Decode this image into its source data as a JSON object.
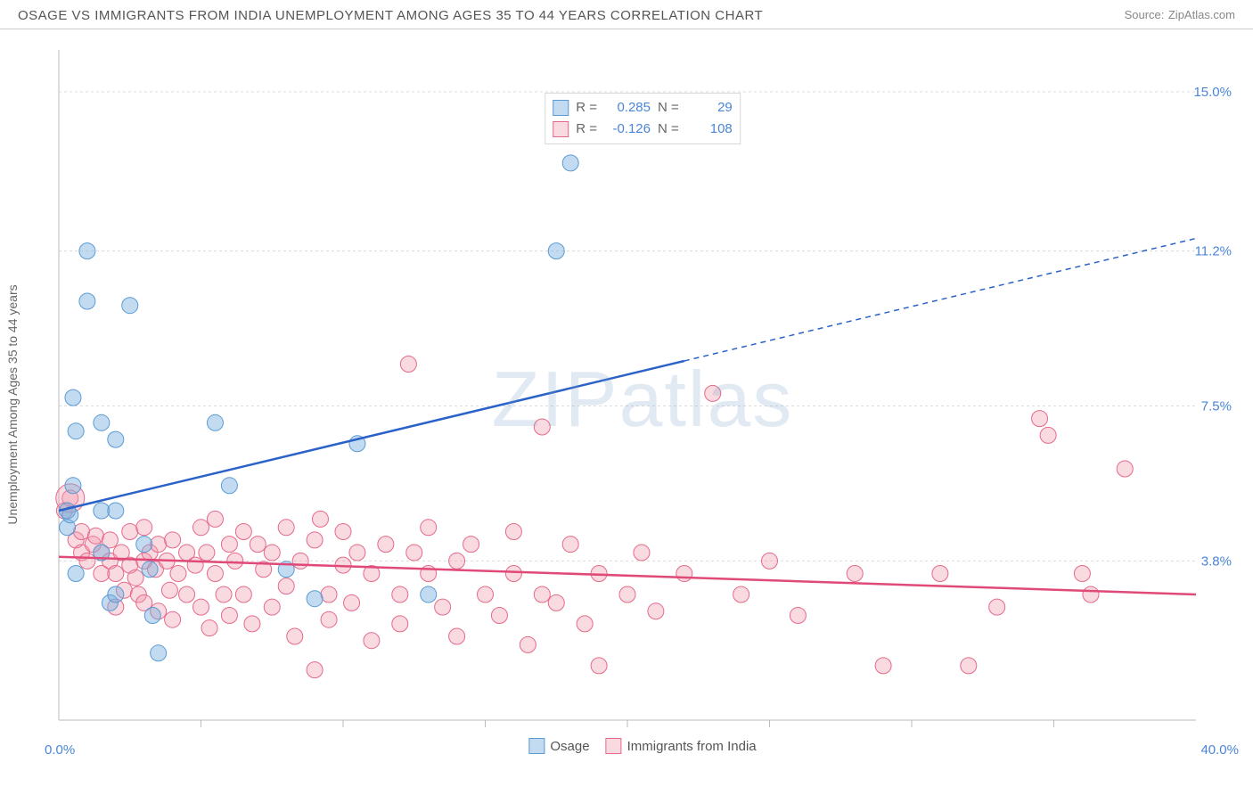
{
  "title": "OSAGE VS IMMIGRANTS FROM INDIA UNEMPLOYMENT AMONG AGES 35 TO 44 YEARS CORRELATION CHART",
  "source_label": "Source:",
  "source_name": "ZipAtlas.com",
  "y_axis_label": "Unemployment Among Ages 35 to 44 years",
  "watermark": {
    "a": "ZIP",
    "b": "atlas"
  },
  "stats": {
    "blue": {
      "R_label": "R =",
      "R": "0.285",
      "N_label": "N =",
      "N": "29"
    },
    "pink": {
      "R_label": "R =",
      "R": "-0.126",
      "N_label": "N =",
      "N": "108"
    }
  },
  "legend": {
    "blue": "Osage",
    "pink": "Immigrants from India"
  },
  "axes": {
    "x_min_label": "0.0%",
    "x_max_label": "40.0%",
    "y_ticks": [
      {
        "value": 3.8,
        "label": "3.8%"
      },
      {
        "value": 7.5,
        "label": "7.5%"
      },
      {
        "value": 11.2,
        "label": "11.2%"
      },
      {
        "value": 15.0,
        "label": "15.0%"
      }
    ],
    "xlim": [
      0,
      40
    ],
    "ylim": [
      0,
      16
    ],
    "x_tick_positions": [
      5,
      10,
      15,
      20,
      25,
      30,
      35
    ]
  },
  "styling": {
    "background_color": "#ffffff",
    "grid_color": "#dcdcdc",
    "axis_color": "#bbbbbb",
    "blue_fill": "rgba(123,175,222,0.45)",
    "blue_stroke": "#5a9bd5",
    "pink_fill": "rgba(240,150,170,0.35)",
    "pink_stroke": "#e56a8a",
    "blue_line": "#2a62c9",
    "pink_line": "#e04a78",
    "marker_radius": 9,
    "text_color": "#666",
    "value_color": "#4a86d8",
    "title_color": "#555"
  },
  "trend_lines": {
    "blue": {
      "x1": 0,
      "y1": 5.0,
      "x2": 40,
      "y2": 11.5,
      "solid_until_x": 22
    },
    "pink": {
      "x1": 0,
      "y1": 3.9,
      "x2": 40,
      "y2": 3.0
    }
  },
  "scatter": {
    "blue": [
      [
        0.3,
        4.6
      ],
      [
        0.3,
        5.0
      ],
      [
        0.4,
        4.9
      ],
      [
        0.5,
        5.6
      ],
      [
        0.6,
        3.5
      ],
      [
        0.5,
        7.7
      ],
      [
        0.6,
        6.9
      ],
      [
        1.0,
        11.2
      ],
      [
        1.0,
        10.0
      ],
      [
        2.5,
        9.9
      ],
      [
        1.5,
        5.0
      ],
      [
        1.5,
        4.0
      ],
      [
        1.5,
        7.1
      ],
      [
        1.8,
        2.8
      ],
      [
        2.0,
        6.7
      ],
      [
        2.0,
        5.0
      ],
      [
        2.0,
        3.0
      ],
      [
        3.0,
        4.2
      ],
      [
        3.2,
        3.6
      ],
      [
        3.3,
        2.5
      ],
      [
        3.5,
        1.6
      ],
      [
        5.5,
        7.1
      ],
      [
        6.0,
        5.6
      ],
      [
        8.0,
        3.6
      ],
      [
        9.0,
        2.9
      ],
      [
        10.5,
        6.6
      ],
      [
        13.0,
        3.0
      ],
      [
        18.0,
        13.3
      ],
      [
        17.5,
        11.2
      ]
    ],
    "pink": [
      [
        0.2,
        5.0
      ],
      [
        0.4,
        5.3
      ],
      [
        0.6,
        4.3
      ],
      [
        0.8,
        4.0
      ],
      [
        0.8,
        4.5
      ],
      [
        1.0,
        3.8
      ],
      [
        1.2,
        4.2
      ],
      [
        1.3,
        4.4
      ],
      [
        1.5,
        3.5
      ],
      [
        1.5,
        4.0
      ],
      [
        1.8,
        3.8
      ],
      [
        1.8,
        4.3
      ],
      [
        2.0,
        3.5
      ],
      [
        2.0,
        2.7
      ],
      [
        2.2,
        4.0
      ],
      [
        2.3,
        3.1
      ],
      [
        2.5,
        4.5
      ],
      [
        2.5,
        3.7
      ],
      [
        2.7,
        3.4
      ],
      [
        2.8,
        3.0
      ],
      [
        3.0,
        4.6
      ],
      [
        3.0,
        3.8
      ],
      [
        3.0,
        2.8
      ],
      [
        3.2,
        4.0
      ],
      [
        3.4,
        3.6
      ],
      [
        3.5,
        4.2
      ],
      [
        3.5,
        2.6
      ],
      [
        3.8,
        3.8
      ],
      [
        3.9,
        3.1
      ],
      [
        4.0,
        4.3
      ],
      [
        4.0,
        2.4
      ],
      [
        4.2,
        3.5
      ],
      [
        4.5,
        4.0
      ],
      [
        4.5,
        3.0
      ],
      [
        4.8,
        3.7
      ],
      [
        5.0,
        4.6
      ],
      [
        5.0,
        2.7
      ],
      [
        5.2,
        4.0
      ],
      [
        5.3,
        2.2
      ],
      [
        5.5,
        3.5
      ],
      [
        5.5,
        4.8
      ],
      [
        5.8,
        3.0
      ],
      [
        6.0,
        4.2
      ],
      [
        6.0,
        2.5
      ],
      [
        6.2,
        3.8
      ],
      [
        6.5,
        4.5
      ],
      [
        6.5,
        3.0
      ],
      [
        6.8,
        2.3
      ],
      [
        7.0,
        4.2
      ],
      [
        7.2,
        3.6
      ],
      [
        7.5,
        4.0
      ],
      [
        7.5,
        2.7
      ],
      [
        8.0,
        4.6
      ],
      [
        8.0,
        3.2
      ],
      [
        8.3,
        2.0
      ],
      [
        8.5,
        3.8
      ],
      [
        9.0,
        4.3
      ],
      [
        9.0,
        1.2
      ],
      [
        9.2,
        4.8
      ],
      [
        9.5,
        3.0
      ],
      [
        9.5,
        2.4
      ],
      [
        10.0,
        3.7
      ],
      [
        10.0,
        4.5
      ],
      [
        10.3,
        2.8
      ],
      [
        10.5,
        4.0
      ],
      [
        11.0,
        3.5
      ],
      [
        11.0,
        1.9
      ],
      [
        11.5,
        4.2
      ],
      [
        12.0,
        3.0
      ],
      [
        12.0,
        2.3
      ],
      [
        12.3,
        8.5
      ],
      [
        12.5,
        4.0
      ],
      [
        13.0,
        3.5
      ],
      [
        13.0,
        4.6
      ],
      [
        13.5,
        2.7
      ],
      [
        14.0,
        3.8
      ],
      [
        14.0,
        2.0
      ],
      [
        14.5,
        4.2
      ],
      [
        15.0,
        3.0
      ],
      [
        15.5,
        2.5
      ],
      [
        16.0,
        3.5
      ],
      [
        16.0,
        4.5
      ],
      [
        16.5,
        1.8
      ],
      [
        17.0,
        3.0
      ],
      [
        17.0,
        7.0
      ],
      [
        17.5,
        2.8
      ],
      [
        18.0,
        4.2
      ],
      [
        18.5,
        2.3
      ],
      [
        19.0,
        3.5
      ],
      [
        19.0,
        1.3
      ],
      [
        20.0,
        3.0
      ],
      [
        20.5,
        4.0
      ],
      [
        21.0,
        2.6
      ],
      [
        22.0,
        3.5
      ],
      [
        23.0,
        7.8
      ],
      [
        24.0,
        3.0
      ],
      [
        25.0,
        3.8
      ],
      [
        26.0,
        2.5
      ],
      [
        28.0,
        3.5
      ],
      [
        29.0,
        1.3
      ],
      [
        31.0,
        3.5
      ],
      [
        32.0,
        1.3
      ],
      [
        33.0,
        2.7
      ],
      [
        34.5,
        7.2
      ],
      [
        34.8,
        6.8
      ],
      [
        36.0,
        3.5
      ],
      [
        36.3,
        3.0
      ],
      [
        37.5,
        6.0
      ]
    ],
    "pink_large": [
      [
        0.4,
        5.3,
        16
      ]
    ]
  }
}
